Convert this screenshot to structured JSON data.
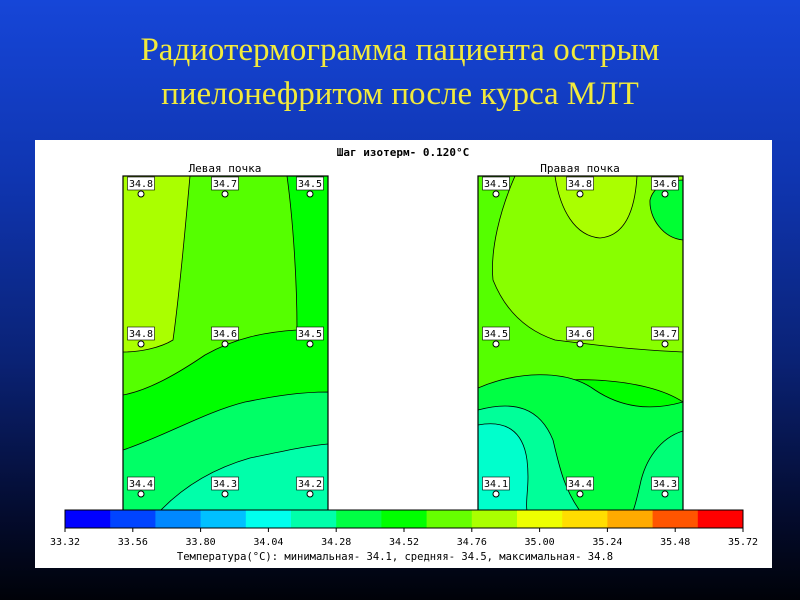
{
  "slide": {
    "title_line1": "Радиотермограмма пациента острым",
    "title_line2": "пиелонефритом после курса МЛТ"
  },
  "map": {
    "isotherm_step": "Шаг изотерм- 0.120°C",
    "left_title": "Левая почка",
    "right_title": "Правая почка",
    "left_points": [
      [
        "34.8",
        "34.7",
        "34.5"
      ],
      [
        "34.8",
        "34.6",
        "34.5"
      ],
      [
        "34.4",
        "34.3",
        "34.2"
      ]
    ],
    "right_points": [
      [
        "34.5",
        "34.8",
        "34.6"
      ],
      [
        "34.5",
        "34.6",
        "34.7"
      ],
      [
        "34.1",
        "34.4",
        "34.3"
      ]
    ],
    "legend_ticks": [
      "33.32",
      "33.56",
      "33.80",
      "34.04",
      "34.28",
      "34.52",
      "34.76",
      "35.00",
      "35.24",
      "35.48",
      "35.72"
    ],
    "legend_colors": [
      "#0000ff",
      "#0044ff",
      "#0088ff",
      "#00c0ff",
      "#00ffee",
      "#00ffaa",
      "#00ff44",
      "#00ff00",
      "#66ff00",
      "#aaff00",
      "#eeff00",
      "#ffdd00",
      "#ffaa00",
      "#ff5500",
      "#ff0000"
    ],
    "summary": "Температура(°C): минимальная- 34.1, средняя- 34.5, максимальная- 34.8"
  }
}
